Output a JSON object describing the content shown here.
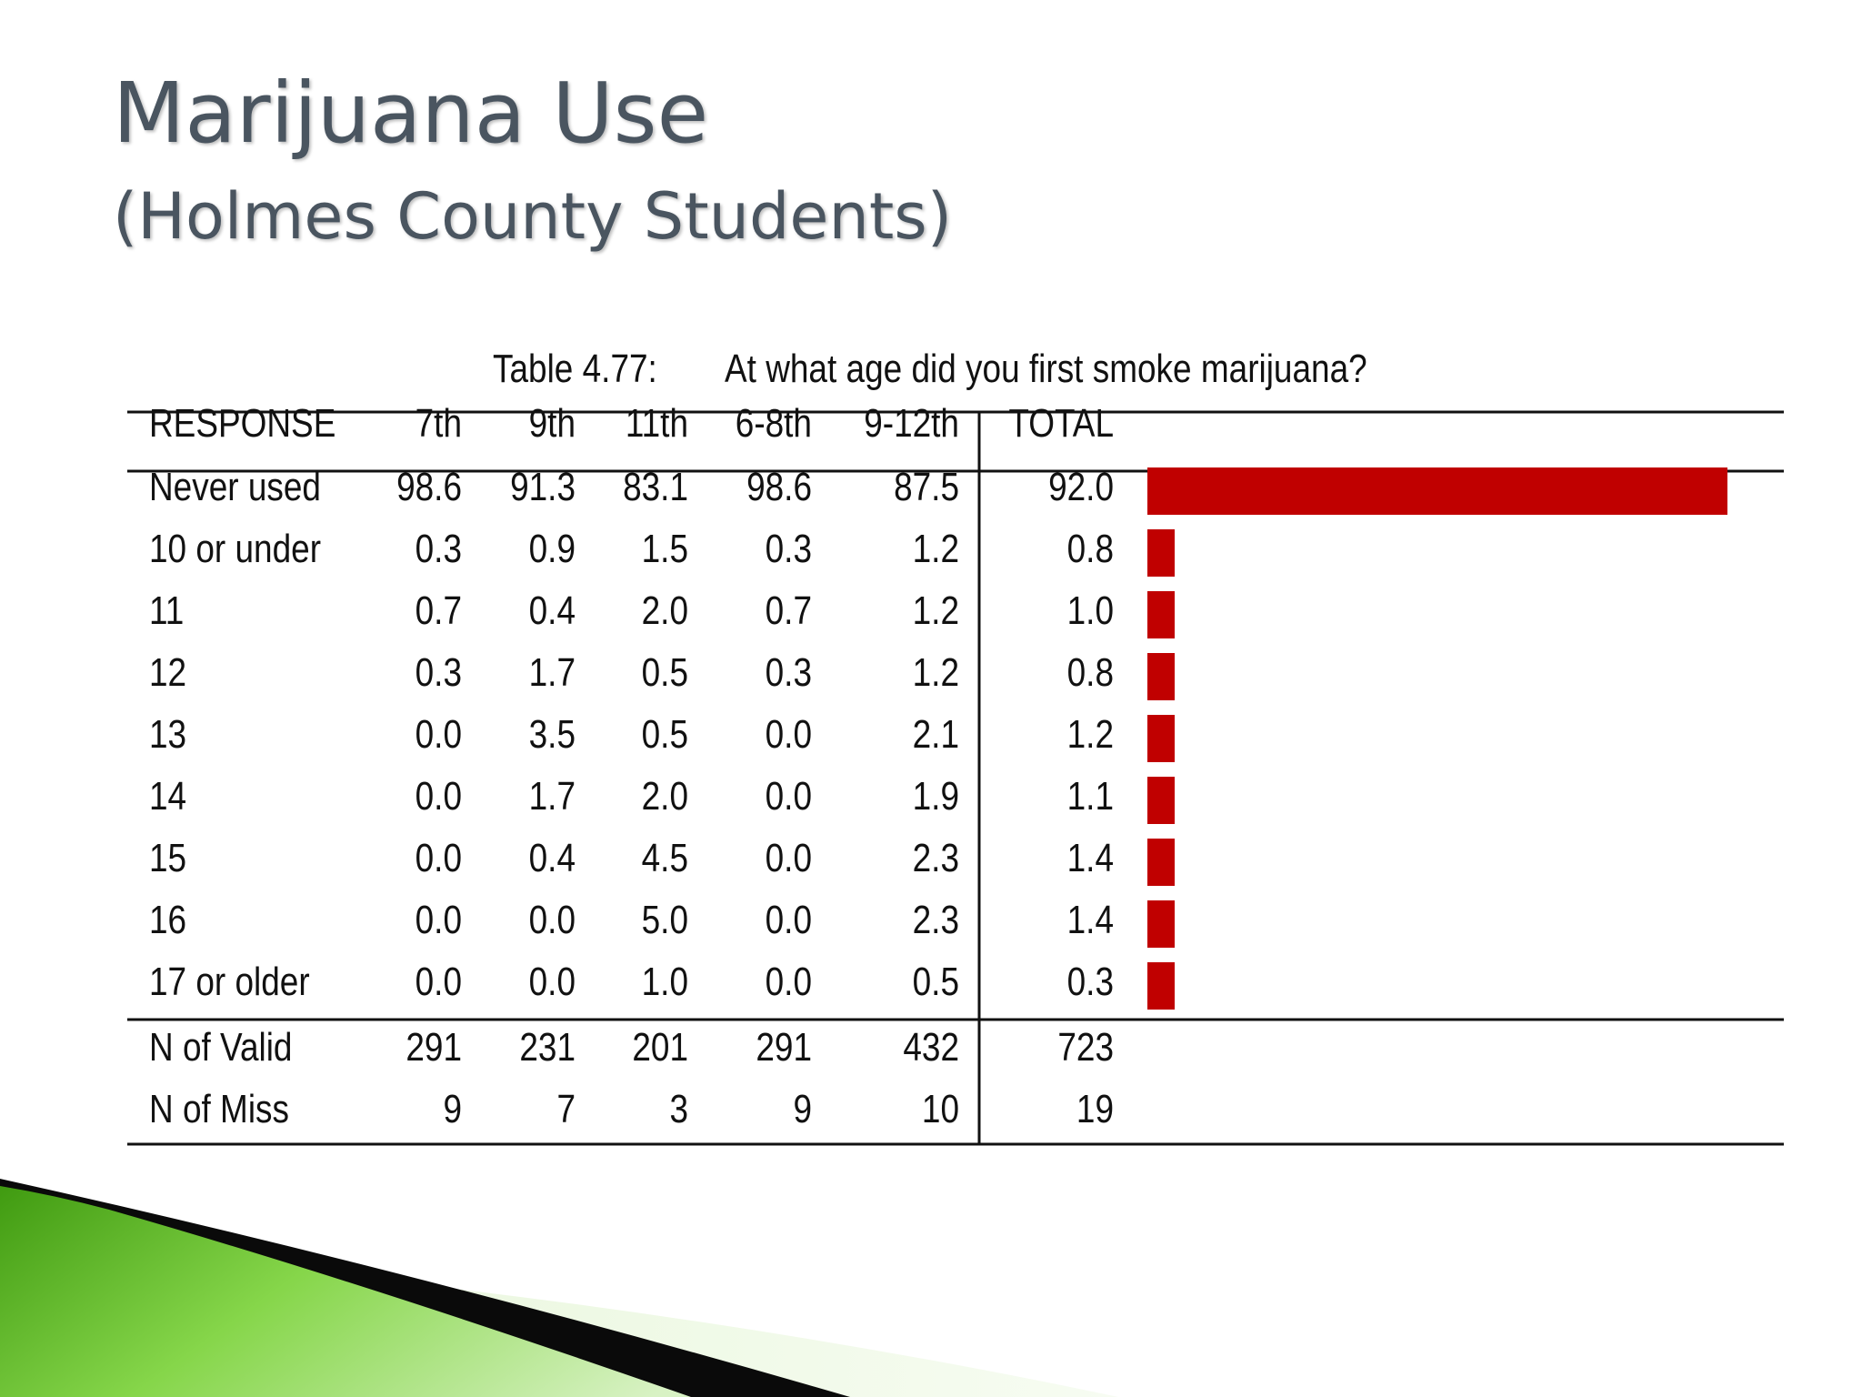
{
  "slide": {
    "title": "Marijuana Use",
    "subtitle": "(Holmes County Students)"
  },
  "table": {
    "number": "Table 4.77:",
    "question": "At what age did you first smoke marijuana?"
  },
  "chart_data": {
    "type": "table",
    "bar_column": "TOTAL",
    "bar_color": "#c00000",
    "columns": [
      "RESPONSE",
      "7th",
      "9th",
      "11th",
      "6-8th",
      "9-12th",
      "TOTAL"
    ],
    "rows": [
      {
        "label": "Never used",
        "values": [
          "98.6",
          "91.3",
          "83.1",
          "98.6",
          "87.5",
          "92.0"
        ]
      },
      {
        "label": "10 or under",
        "values": [
          "0.3",
          "0.9",
          "1.5",
          "0.3",
          "1.2",
          "0.8"
        ]
      },
      {
        "label": "11",
        "values": [
          "0.7",
          "0.4",
          "2.0",
          "0.7",
          "1.2",
          "1.0"
        ]
      },
      {
        "label": "12",
        "values": [
          "0.3",
          "1.7",
          "0.5",
          "0.3",
          "1.2",
          "0.8"
        ]
      },
      {
        "label": "13",
        "values": [
          "0.0",
          "3.5",
          "0.5",
          "0.0",
          "2.1",
          "1.2"
        ]
      },
      {
        "label": "14",
        "values": [
          "0.0",
          "1.7",
          "2.0",
          "0.0",
          "1.9",
          "1.1"
        ]
      },
      {
        "label": "15",
        "values": [
          "0.0",
          "0.4",
          "4.5",
          "0.0",
          "2.3",
          "1.4"
        ]
      },
      {
        "label": "16",
        "values": [
          "0.0",
          "0.0",
          "5.0",
          "0.0",
          "2.3",
          "1.4"
        ]
      },
      {
        "label": "17 or older",
        "values": [
          "0.0",
          "0.0",
          "1.0",
          "0.0",
          "0.5",
          "0.3"
        ]
      }
    ],
    "summary_rows": [
      {
        "label": "N of Valid",
        "values": [
          "291",
          "231",
          "201",
          "291",
          "432",
          "723"
        ]
      },
      {
        "label": "N of Miss",
        "values": [
          "9",
          "7",
          "3",
          "9",
          "10",
          "19"
        ]
      }
    ]
  }
}
